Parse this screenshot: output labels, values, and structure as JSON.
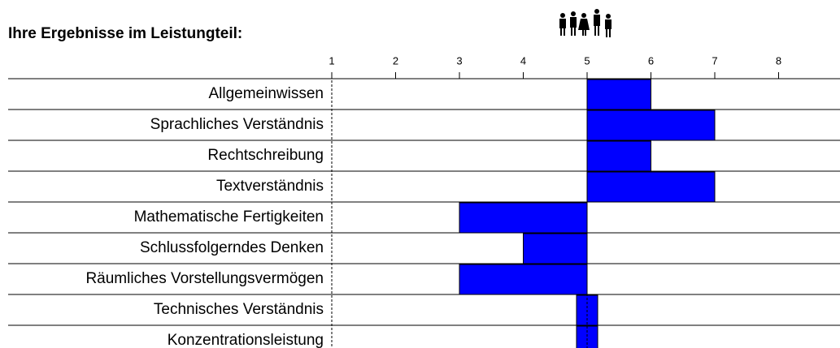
{
  "chart_data": {
    "type": "bar",
    "orientation": "horizontal",
    "title": "Ihre Ergebnisse im Leistungteil:",
    "categories": [
      "Allgemeinwissen",
      "Sprachliches Verständnis",
      "Rechtschreibung",
      "Textverständnis",
      "Mathematische Fertigkeiten",
      "Schlussfolgerndes Denken",
      "Räumliches Vorstellungsvermögen",
      "Technisches Verständnis",
      "Konzentrationsleistung"
    ],
    "values": [
      6,
      7,
      6,
      7,
      3,
      4,
      3,
      5,
      5
    ],
    "reference": 5,
    "color": "#0000ff",
    "xlim": [
      1,
      9
    ],
    "xticks": [
      1,
      2,
      3,
      4,
      5,
      6,
      7,
      8,
      9
    ]
  }
}
